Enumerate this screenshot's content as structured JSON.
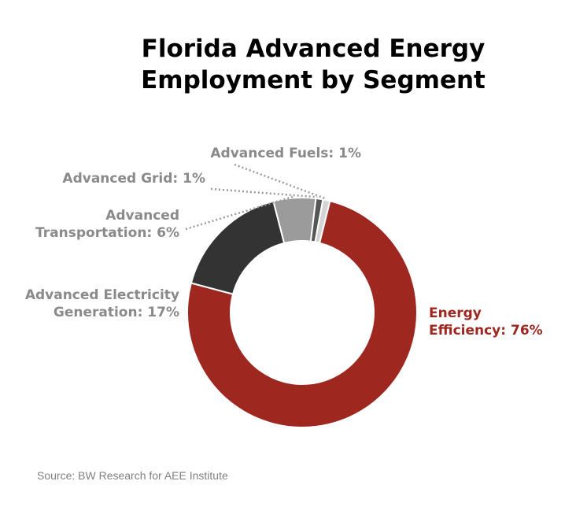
{
  "title_lines": [
    "Florida Advanced Energy",
    "Employment by Segment"
  ],
  "source": "Source: BW Research for AEE Institute",
  "chart_data": {
    "type": "pie",
    "variant": "donut",
    "title": "Florida Advanced Energy Employment by Segment",
    "slices": [
      {
        "label": "Energy Efficiency: 76%",
        "label_lines": [
          "Energy",
          "Efficiency: 76%"
        ],
        "value": 76,
        "color": "#9e2720"
      },
      {
        "label": "Advanced Electricity Generation: 17%",
        "label_lines": [
          "Advanced Electricity",
          "Generation: 17%"
        ],
        "value": 17,
        "color": "#333333"
      },
      {
        "label": "Advanced Transportation: 6%",
        "label_lines": [
          "Advanced",
          "Transportation: 6%"
        ],
        "value": 6,
        "color": "#9b9b9b"
      },
      {
        "label": "Advanced Grid: 1%",
        "label_lines": [
          "Advanced Grid: 1%"
        ],
        "value": 1,
        "color": "#555555"
      },
      {
        "label": "Advanced Fuels: 1%",
        "label_lines": [
          "Advanced Fuels: 1%"
        ],
        "value": 1,
        "color": "#d4d4d4"
      }
    ],
    "label_colors": {
      "Energy Efficiency: 76%": "#9e2720",
      "other": "#8a8a8a"
    },
    "legend": "none"
  }
}
